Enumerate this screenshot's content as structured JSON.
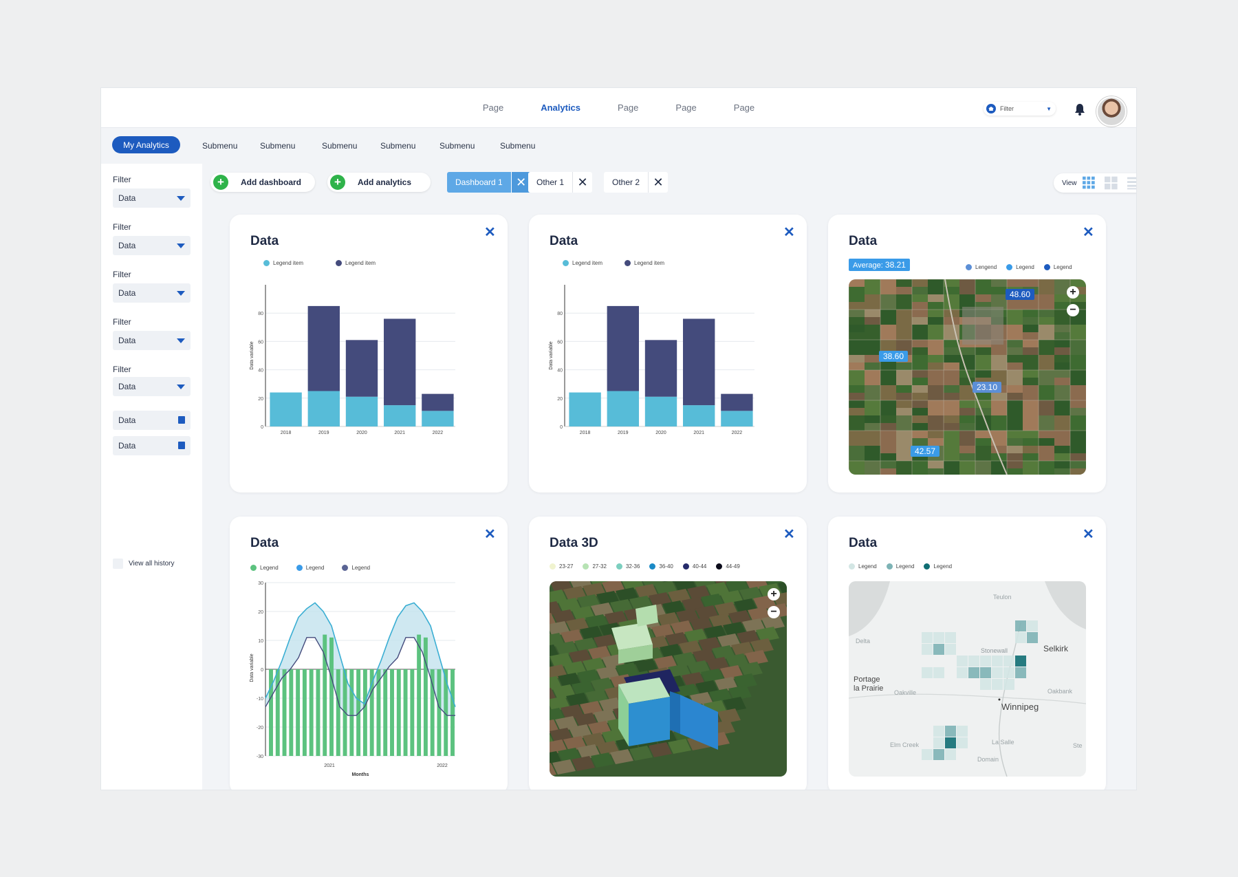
{
  "topnav": {
    "pages": [
      "Page",
      "Analytics",
      "Page",
      "Page",
      "Page"
    ],
    "active_index": 1,
    "filter_label": "Filter"
  },
  "subnav": {
    "primary": "My Analytics",
    "items": [
      "Submenu",
      "Submenu",
      "Submenu",
      "Submenu",
      "Submenu",
      "Submenu"
    ]
  },
  "sidebar": {
    "filters": [
      {
        "label": "Filter",
        "value": "Data"
      },
      {
        "label": "Filter",
        "value": "Data"
      },
      {
        "label": "Filter",
        "value": "Data"
      },
      {
        "label": "Filter",
        "value": "Data"
      },
      {
        "label": "Filter",
        "value": "Data"
      }
    ],
    "dates": [
      "Data",
      "Data"
    ],
    "history_label": "View all history"
  },
  "toolbar": {
    "add_dashboard": "Add dashboard",
    "add_analytics": "Add analytics",
    "tabs": [
      "Dashboard 1",
      "Other 1",
      "Other 2"
    ],
    "view_label": "View"
  },
  "colors": {
    "accent": "#1d5bbf",
    "bar_light": "#57bcd8",
    "bar_dark": "#444b7c",
    "green": "#5cc27f"
  },
  "cards": {
    "c1": {
      "title": "Data",
      "legend": [
        "Legend item",
        "Legend item"
      ]
    },
    "c2": {
      "title": "Data",
      "legend": [
        "Legend item",
        "Legend item"
      ]
    },
    "c3": {
      "title": "Data",
      "average_label": "Average:",
      "average_value": "38.21",
      "legend": [
        "Lengend",
        "Legend",
        "Legend"
      ],
      "tags": [
        "48.60",
        "38.60",
        "23.10",
        "42.57"
      ]
    },
    "c4": {
      "title": "Data",
      "legend": [
        "Legend",
        "Legend",
        "Legend"
      ]
    },
    "c5": {
      "title": "Data 3D",
      "legend": [
        "23-27",
        "27-32",
        "32-36",
        "36-40",
        "40-44",
        "44-49"
      ]
    },
    "c6": {
      "title": "Data",
      "legend": [
        "Legend",
        "Legend",
        "Legend"
      ],
      "places": [
        "Teulon",
        "Stonewall",
        "Selkirk",
        "Portage\nla Prairie",
        "Oakville",
        "Winnipeg",
        "Oakbank",
        "Elm Creek",
        "La Salle",
        "Domain",
        "Ste",
        "Delta"
      ]
    }
  },
  "chart_data": [
    {
      "type": "bar",
      "title": "Data",
      "ylabel": "Data variable",
      "categories": [
        "2018",
        "2019",
        "2020",
        "2021",
        "2022"
      ],
      "series": [
        {
          "name": "Legend item",
          "values": [
            24,
            25,
            21,
            15,
            11
          ]
        },
        {
          "name": "Legend item",
          "values": [
            0,
            60,
            40,
            61,
            12
          ]
        }
      ],
      "yticks": [
        0,
        20,
        40,
        60,
        80
      ],
      "ylim": [
        0,
        100
      ],
      "stacked": true
    },
    {
      "type": "bar",
      "title": "Data",
      "ylabel": "Data variable",
      "categories": [
        "2018",
        "2019",
        "2020",
        "2021",
        "2022"
      ],
      "series": [
        {
          "name": "Legend item",
          "values": [
            24,
            25,
            21,
            15,
            11
          ]
        },
        {
          "name": "Legend item",
          "values": [
            0,
            60,
            40,
            61,
            12
          ]
        }
      ],
      "yticks": [
        0,
        20,
        40,
        60,
        80
      ],
      "ylim": [
        0,
        100
      ],
      "stacked": true
    },
    {
      "type": "line",
      "title": "Data",
      "xlabel": "Months",
      "ylabel": "Data variable",
      "x_ticks": [
        "2021",
        "2022"
      ],
      "yticks": [
        30,
        20,
        10,
        0,
        -10,
        -20,
        -30
      ],
      "ylim": [
        -30,
        30
      ],
      "series": [
        {
          "name": "Legend",
          "kind": "bar",
          "values": [
            -24,
            -25,
            -24,
            -23,
            -24,
            -1,
            -2,
            -15,
            12,
            11,
            -7,
            -14,
            -20,
            -22,
            -24,
            -23,
            -22,
            -24,
            -23,
            -1,
            -1,
            -9,
            12,
            11,
            -1,
            -20,
            -23,
            -23
          ]
        },
        {
          "name": "Legend",
          "kind": "line",
          "values": [
            -10,
            -4,
            3,
            11,
            18,
            21,
            23,
            20,
            15,
            5,
            -5,
            -10,
            -12,
            -4,
            3,
            11,
            18,
            22,
            23,
            20,
            15,
            5,
            -5,
            -13
          ]
        },
        {
          "name": "Legend",
          "kind": "line",
          "values": [
            -13,
            -8,
            -3,
            0,
            4,
            11,
            11,
            6,
            -3,
            -13,
            -16,
            -16,
            -13,
            -7,
            -3,
            1,
            4,
            11,
            11,
            6,
            -3,
            -13,
            -16,
            -16
          ]
        }
      ]
    }
  ]
}
